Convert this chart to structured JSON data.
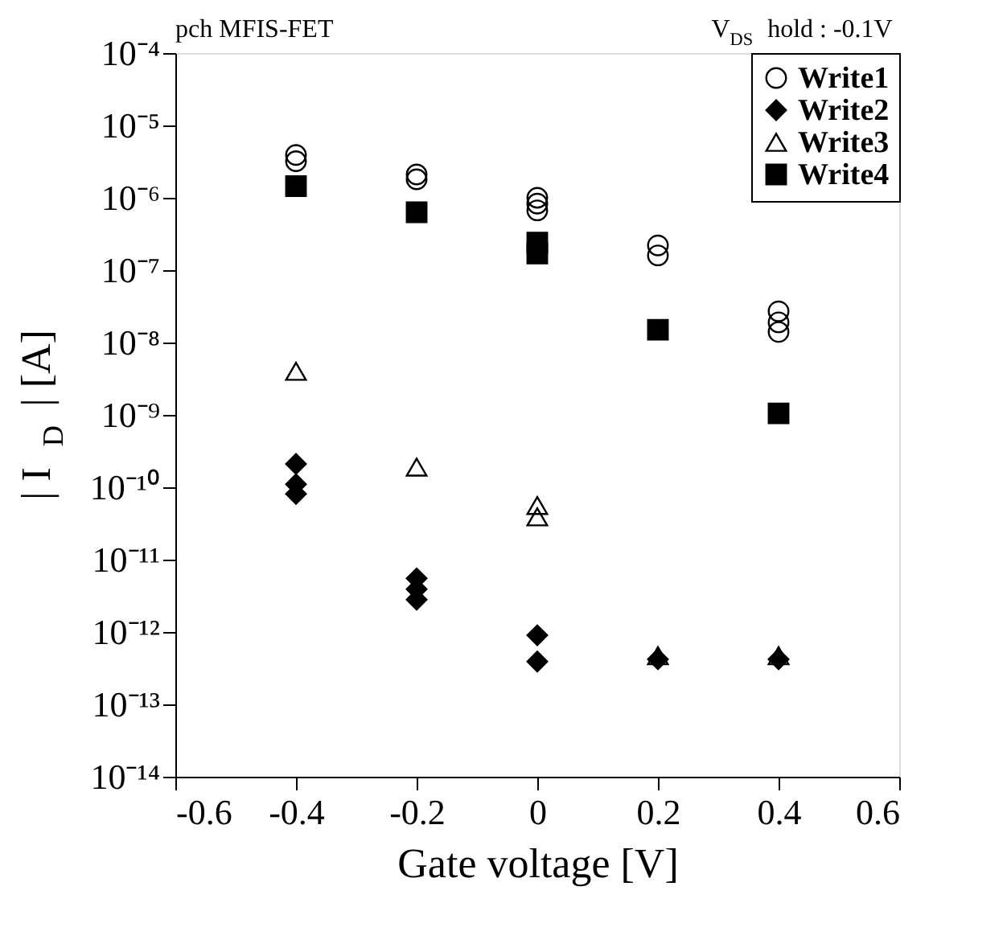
{
  "chart_data": {
    "type": "scatter",
    "xlabel": "Gate voltage [V]",
    "ylabel": "| I$_{D}$ | [A]",
    "annotations": [
      "pch MFIS-FET",
      "V$_{DS}$ hold : -0.1V"
    ],
    "log": "y",
    "xlim": [
      -0.6,
      0.6
    ],
    "xticks": [
      -0.6,
      -0.4,
      -0.2,
      0,
      0.2,
      0.4,
      0.6
    ],
    "ylim": [
      1e-14,
      0.0001
    ],
    "yticks": [
      {
        "value": 1e-14,
        "label": "10⁻¹⁴"
      },
      {
        "value": 1e-13,
        "label": "10⁻¹³"
      },
      {
        "value": 1e-12,
        "label": "10⁻¹²"
      },
      {
        "value": 1e-11,
        "label": "10⁻¹¹"
      },
      {
        "value": 1e-10,
        "label": "10⁻¹⁰"
      },
      {
        "value": 1e-09,
        "label": "10⁻⁹"
      },
      {
        "value": 1e-08,
        "label": "10⁻⁸"
      },
      {
        "value": 1e-07,
        "label": "10⁻⁷"
      },
      {
        "value": 1e-06,
        "label": "10⁻⁶"
      },
      {
        "value": 1e-05,
        "label": "10⁻⁵"
      },
      {
        "value": 0.0001,
        "label": "10⁻⁴"
      }
    ],
    "grid": false,
    "legend": "top right",
    "series": [
      {
        "name": "Write1",
        "color": "#000000",
        "marker": "circle",
        "x": [
          -0.4,
          -0.4,
          -0.2,
          -0.2,
          0,
          0,
          0,
          0.2,
          0.2,
          0.4,
          0.4,
          0.4
        ],
        "values": [
          3.9e-06,
          3.2e-06,
          2.1e-06,
          1.8e-06,
          1e-06,
          8.3e-07,
          6.7e-07,
          2.2e-07,
          1.6e-07,
          2.7e-08,
          1.9e-08,
          1.4e-08
        ]
      },
      {
        "name": "Write2",
        "color": "#000000",
        "marker": "diamond",
        "x": [
          -0.4,
          -0.4,
          -0.4,
          -0.2,
          -0.2,
          -0.2,
          0,
          0,
          0.2,
          0.4
        ],
        "values": [
          2.1e-10,
          1.1e-10,
          8.1e-11,
          5.5e-12,
          3.9e-12,
          2.8e-12,
          9e-13,
          3.9e-13,
          4.2e-13,
          4.2e-13
        ]
      },
      {
        "name": "Write3",
        "color": "#000000",
        "marker": "triangle",
        "x": [
          -0.4,
          -0.2,
          0,
          0,
          0.2,
          0.4
        ],
        "values": [
          4e-09,
          1.9e-10,
          5.6e-11,
          3.9e-11,
          4.7e-13,
          4.7e-13
        ]
      },
      {
        "name": "Write4",
        "color": "#000000",
        "marker": "square",
        "x": [
          -0.4,
          -0.2,
          0,
          0,
          0.2,
          0.4
        ],
        "values": [
          1.45e-06,
          6.3e-07,
          2.4e-07,
          1.7e-07,
          1.5e-08,
          1.05e-09
        ]
      }
    ]
  }
}
